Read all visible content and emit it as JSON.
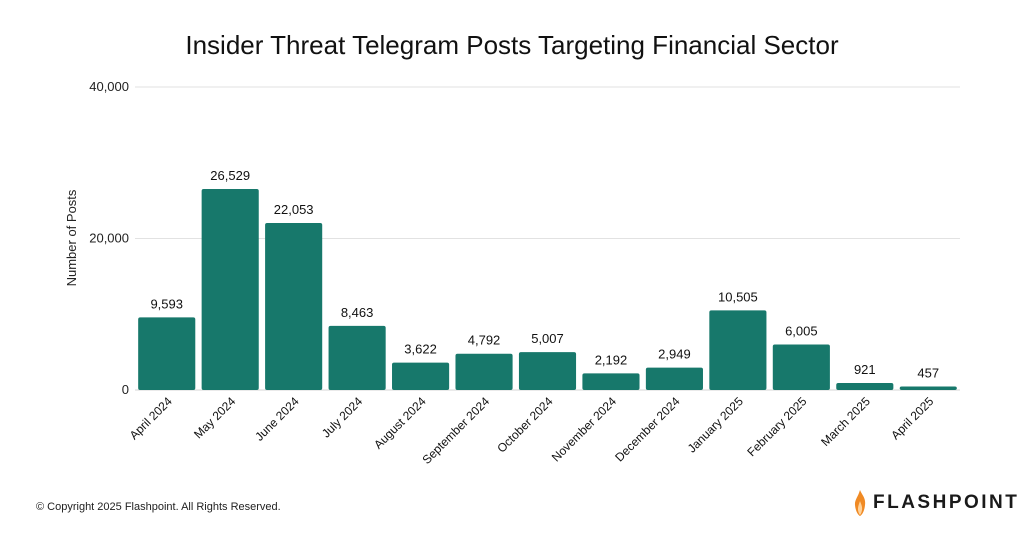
{
  "chart_data": {
    "type": "bar",
    "title": "Insider Threat Telegram Posts Targeting Financial Sector",
    "ylabel": "Number of Posts",
    "xlabel": "",
    "ylim": [
      0,
      40000
    ],
    "yticks": [
      "0",
      "20,000",
      "40,000"
    ],
    "ytick_values": [
      0,
      20000,
      40000
    ],
    "grid": true,
    "bar_color": "#17786b",
    "categories": [
      "April 2024",
      "May 2024",
      "June 2024",
      "July 2024",
      "August 2024",
      "September 2024",
      "October 2024",
      "November 2024",
      "December 2024",
      "January 2025",
      "February 2025",
      "March 2025",
      "April 2025"
    ],
    "values": [
      9593,
      26529,
      22053,
      8463,
      3622,
      4792,
      5007,
      2192,
      2949,
      10505,
      6005,
      921,
      457
    ],
    "value_labels": [
      "9,593",
      "26,529",
      "22,053",
      "8,463",
      "3,622",
      "4,792",
      "5,007",
      "2,192",
      "2,949",
      "10,505",
      "6,005",
      "921",
      "457"
    ]
  },
  "footer": {
    "copyright": "© Copyright 2025 Flashpoint. All Rights Reserved."
  },
  "brand": {
    "name": "FLASHPOINT",
    "icon": "flame-icon",
    "flame_color": "#f08a24"
  }
}
